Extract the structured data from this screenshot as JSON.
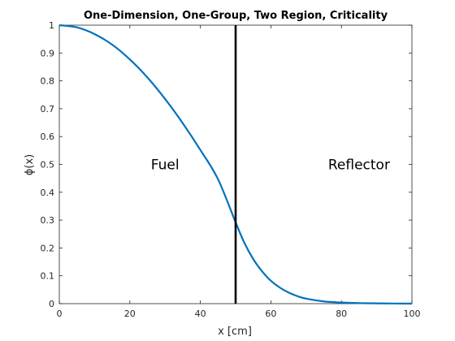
{
  "chart_data": {
    "type": "line",
    "title": "One-Dimension, One-Group, Two Region, Criticality",
    "xlabel": "x [cm]",
    "ylabel": "ϕ(x)",
    "xlim": [
      0,
      100
    ],
    "ylim": [
      0,
      1
    ],
    "xticks": [
      0,
      20,
      40,
      60,
      80,
      100
    ],
    "yticks": [
      0,
      0.1,
      0.2,
      0.3,
      0.4,
      0.5,
      0.6,
      0.7,
      0.8,
      0.9,
      1
    ],
    "xtick_labels": [
      "0",
      "20",
      "40",
      "60",
      "80",
      "100"
    ],
    "ytick_labels": [
      "0",
      "0.1",
      "0.2",
      "0.3",
      "0.4",
      "0.5",
      "0.6",
      "0.7",
      "0.8",
      "0.9",
      "1"
    ],
    "grid": false,
    "series": [
      {
        "color": "#0072bd",
        "x": [
          0,
          5,
          10,
          15,
          20,
          25,
          30,
          35,
          40,
          45,
          50,
          52.5,
          55,
          57.5,
          60,
          62.5,
          65,
          67.5,
          70,
          75,
          80,
          85,
          90,
          95,
          100
        ],
        "y": [
          1.0,
          0.992,
          0.968,
          0.93,
          0.877,
          0.812,
          0.735,
          0.648,
          0.552,
          0.447,
          0.292,
          0.218,
          0.16,
          0.116,
          0.082,
          0.058,
          0.04,
          0.027,
          0.018,
          0.008,
          0.004,
          0.002,
          0.001,
          0.0005,
          0.0
        ]
      }
    ],
    "vertical_line": {
      "x": 50,
      "color": "#000000"
    },
    "annotations": [
      {
        "text": "Fuel",
        "x": 30,
        "y": 0.5
      },
      {
        "text": "Reflector",
        "x": 85,
        "y": 0.5
      }
    ]
  }
}
